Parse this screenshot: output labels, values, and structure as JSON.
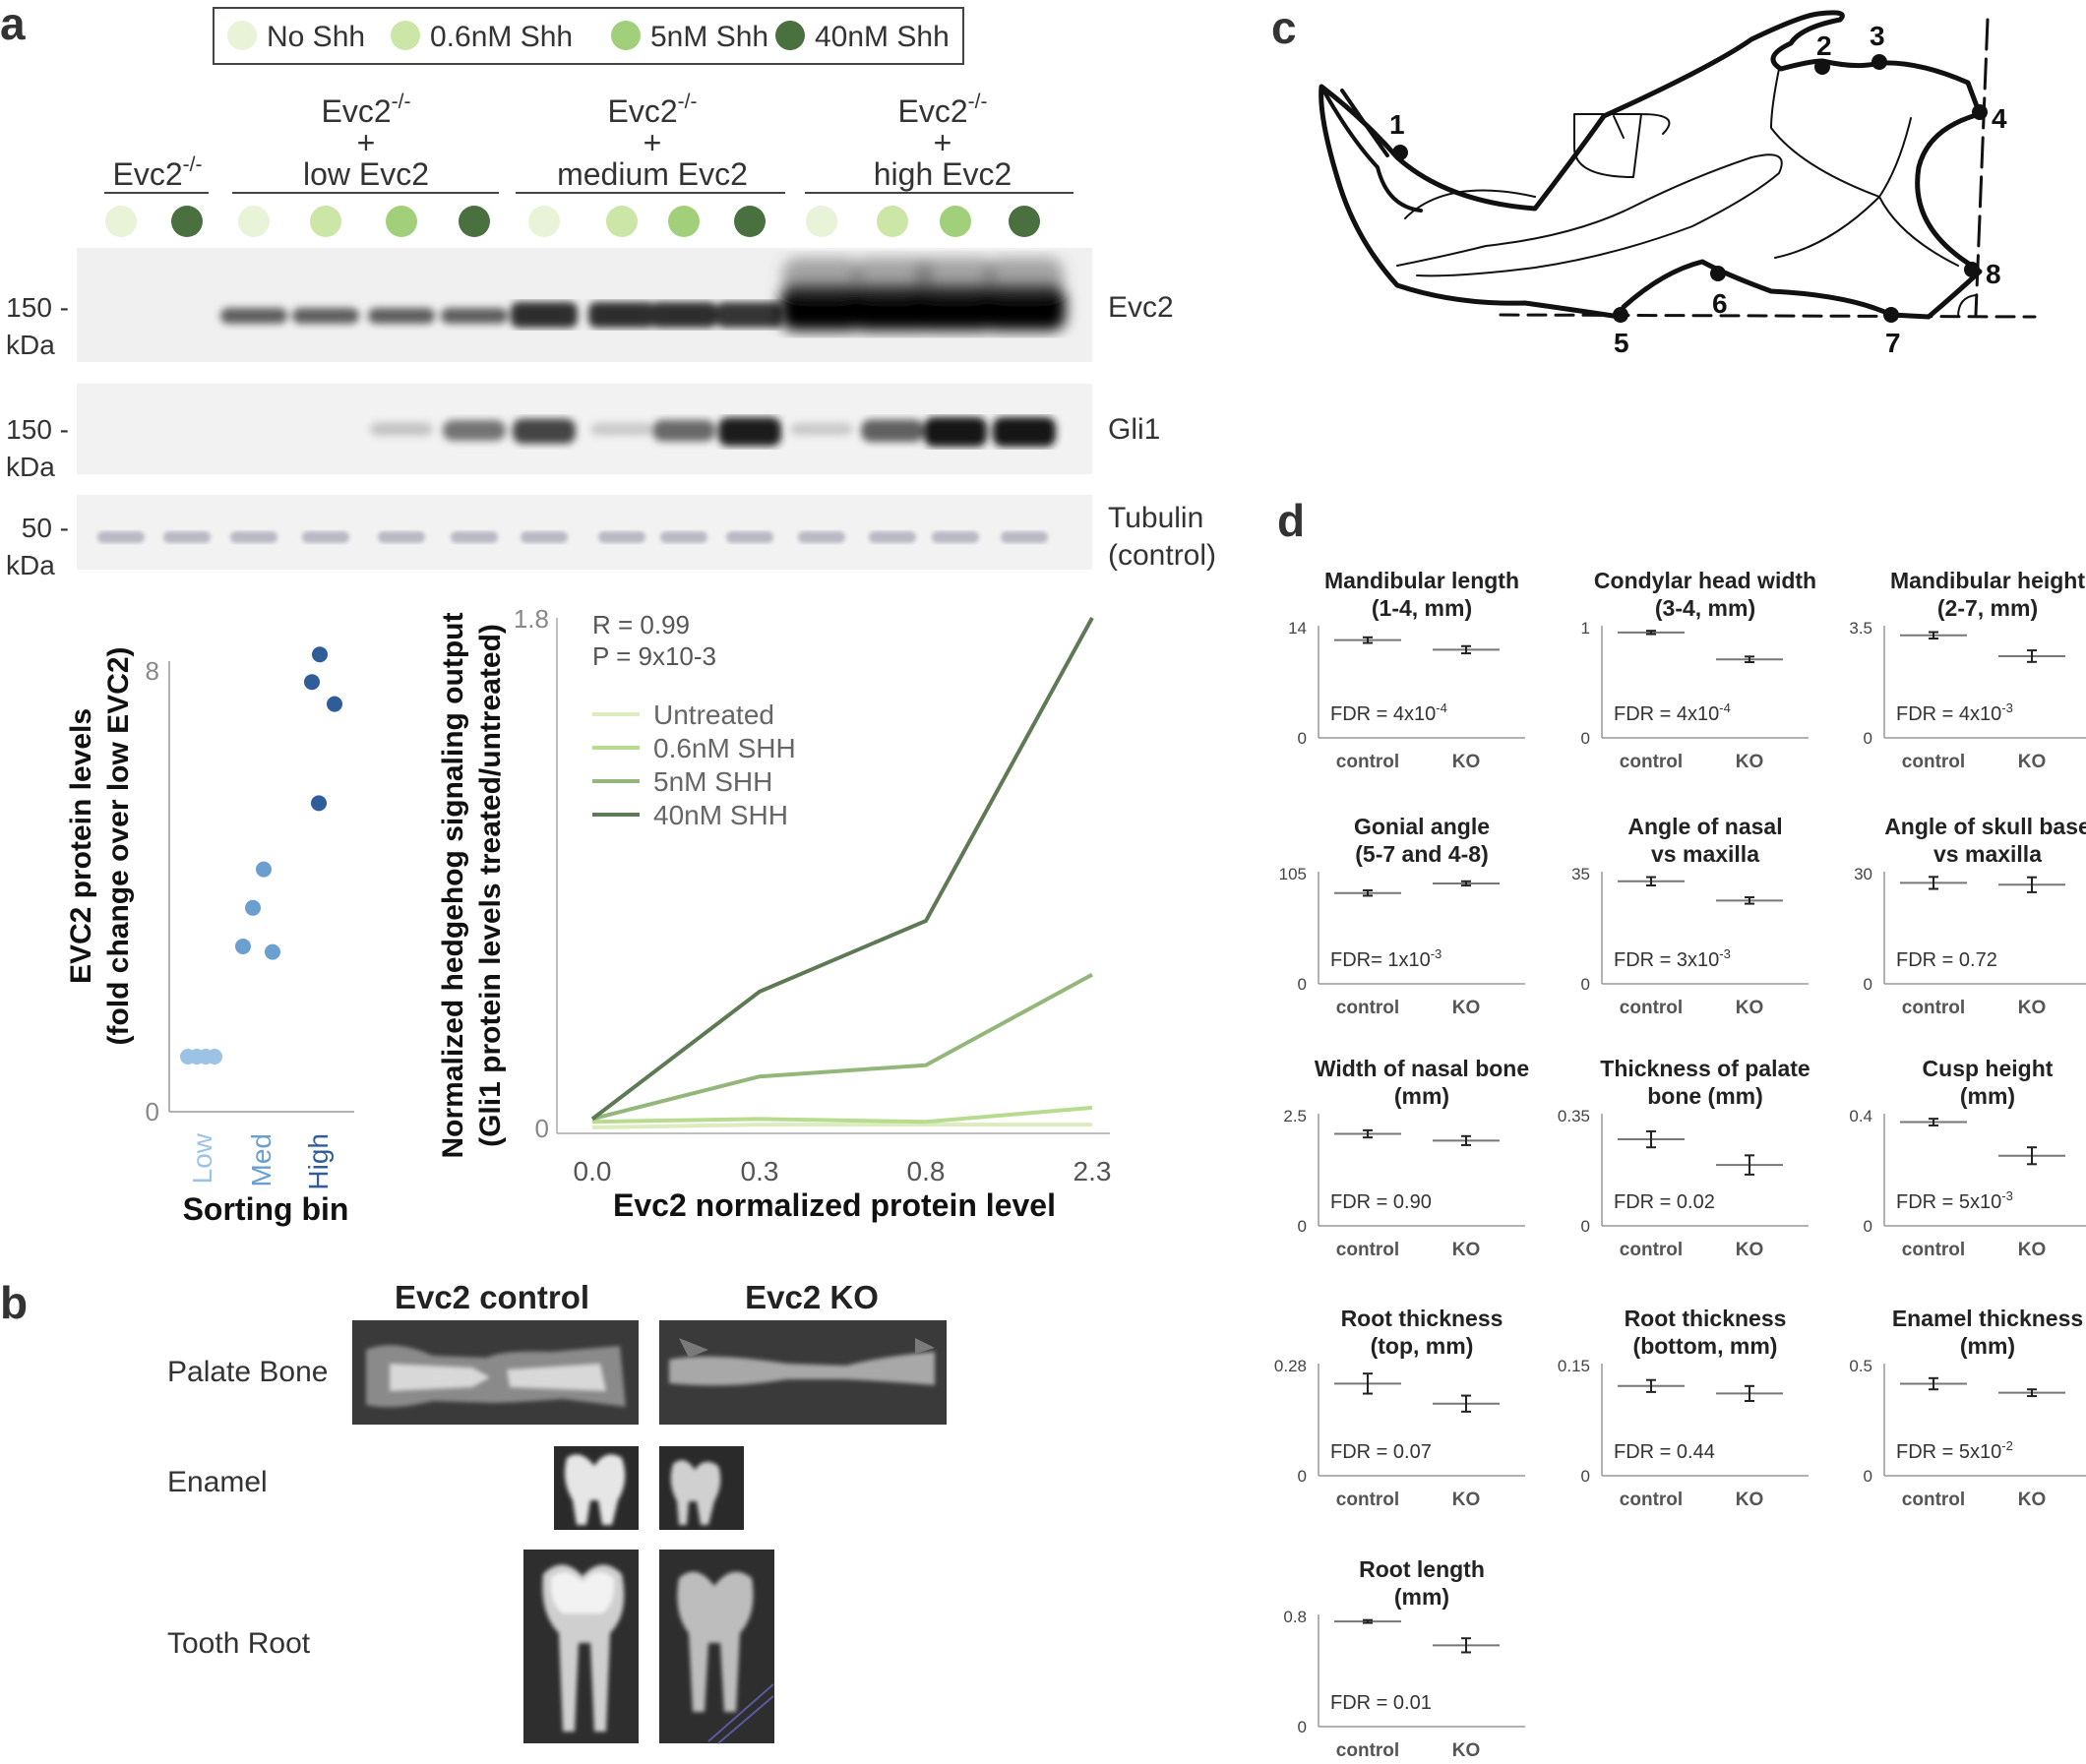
{
  "panels": {
    "a": "a",
    "b": "b",
    "c": "c",
    "d": "d"
  },
  "blot": {
    "legend": [
      {
        "label": "No Shh",
        "color": "#e8f3d8"
      },
      {
        "label": "0.6nM Shh",
        "color": "#cbe6a6"
      },
      {
        "label": "5nM Shh",
        "color": "#a2d07a"
      },
      {
        "label": "40nM Shh",
        "color": "#4a7040"
      }
    ],
    "groups": [
      {
        "lines": [
          "Evc2-/-"
        ]
      },
      {
        "lines": [
          "Evc2-/-",
          "+",
          "low Evc2"
        ]
      },
      {
        "lines": [
          "Evc2-/-",
          "+",
          "medium Evc2"
        ]
      },
      {
        "lines": [
          "Evc2-/-",
          "+",
          "high Evc2"
        ]
      }
    ],
    "superscript": "-/-",
    "bands": [
      {
        "name": "Evc2",
        "mw": "150 -",
        "unit": "kDa"
      },
      {
        "name": "Gli1",
        "mw": "150 -",
        "unit": "kDa"
      },
      {
        "name": "Tubulin",
        "name2": "(control)",
        "mw": "50 -",
        "unit": "kDa"
      }
    ]
  },
  "chart_data": [
    {
      "type": "scatter",
      "title": "",
      "xlabel": "Sorting bin",
      "ylabel": "EVC2 protein levels",
      "ylabel2": "(fold change over low EVC2)",
      "categories": [
        "Low",
        "Med",
        "High"
      ],
      "category_colors": [
        "#9cc2e6",
        "#6a9fd0",
        "#2f5d9a"
      ],
      "ylim": [
        0,
        8
      ],
      "yticks": [
        "0",
        "8"
      ],
      "points": [
        {
          "x": "Low",
          "y": 1.0
        },
        {
          "x": "Low",
          "y": 1.0
        },
        {
          "x": "Low",
          "y": 1.0
        },
        {
          "x": "Low",
          "y": 1.0
        },
        {
          "x": "Med",
          "y": 4.4
        },
        {
          "x": "Med",
          "y": 3.7
        },
        {
          "x": "Med",
          "y": 2.9
        },
        {
          "x": "Med",
          "y": 3.0
        },
        {
          "x": "High",
          "y": 8.3
        },
        {
          "x": "High",
          "y": 7.8
        },
        {
          "x": "High",
          "y": 7.4
        },
        {
          "x": "High",
          "y": 5.6
        }
      ]
    },
    {
      "type": "line",
      "xlabel": "Evc2 normalized protein level",
      "ylabel": "Normalized hedgehog signaling output",
      "ylabel2": "(Gli1 protein levels treated/untreated)",
      "x": [
        "0.0",
        "0.3",
        "0.8",
        "2.3"
      ],
      "ylim": [
        0,
        1.8
      ],
      "yticks": [
        "0",
        "1.8"
      ],
      "stats": [
        "R = 0.99",
        "P = 9x10-3"
      ],
      "series": [
        {
          "name": "Untreated",
          "color": "#dcebc0",
          "values": [
            0.0,
            0.01,
            0.01,
            0.01
          ]
        },
        {
          "name": "0.6nM SHH",
          "color": "#b8dc8f",
          "values": [
            0.02,
            0.03,
            0.02,
            0.07
          ]
        },
        {
          "name": "5nM SHH",
          "color": "#93b67a",
          "values": [
            0.03,
            0.18,
            0.22,
            0.54
          ]
        },
        {
          "name": "40nM SHH",
          "color": "#5e7a55",
          "values": [
            0.03,
            0.48,
            0.73,
            1.8
          ]
        }
      ]
    }
  ],
  "micro": {
    "col1": "Evc2 control",
    "col2": "Evc2 KO",
    "rows": [
      "Palate Bone",
      "Enamel",
      "Tooth Root"
    ]
  },
  "skull": {
    "landmarks": [
      "1",
      "2",
      "3",
      "4",
      "5",
      "6",
      "7",
      "8"
    ]
  },
  "minicharts": [
    {
      "title1": "Mandibular length",
      "title2": "(1-4, mm)",
      "ymax": "14",
      "fdr": "FDR = 4x10",
      "exp": "-4",
      "categories": [
        "control",
        "KO"
      ],
      "means": [
        12.2,
        11.0
      ],
      "errs": [
        0.35,
        0.45
      ],
      "max": 14
    },
    {
      "title1": "Condylar head width",
      "title2": "(3-4, mm)",
      "ymax": "1",
      "fdr": "FDR = 4x10",
      "exp": "-4",
      "categories": [
        "control",
        "KO"
      ],
      "means": [
        0.94,
        0.7
      ],
      "errs": [
        0.015,
        0.025
      ],
      "max": 1
    },
    {
      "title1": "Mandibular height",
      "title2": "(2-7, mm)",
      "ymax": "3.5",
      "fdr": "FDR = 4x10",
      "exp": "-3",
      "categories": [
        "control",
        "KO"
      ],
      "means": [
        3.2,
        2.55
      ],
      "errs": [
        0.1,
        0.18
      ],
      "max": 3.5
    },
    {
      "title1": "Gonial angle",
      "title2": "(5-7 and 4-8)",
      "ymax": "105",
      "fdr": "FDR= 1x10",
      "exp": "-3",
      "categories": [
        "control",
        "KO"
      ],
      "means": [
        85,
        94
      ],
      "errs": [
        2.5,
        2
      ],
      "max": 105
    },
    {
      "title1": "Angle of nasal",
      "title2": "vs maxilla",
      "ymax": "35",
      "fdr": "FDR = 3x10",
      "exp": "-3",
      "categories": [
        "control",
        "KO"
      ],
      "means": [
        32,
        26
      ],
      "errs": [
        1.3,
        1.0
      ],
      "max": 35
    },
    {
      "title1": "Angle of skull base",
      "title2": "vs maxilla",
      "ymax": "30",
      "fdr": "FDR = 0.72",
      "exp": "",
      "categories": [
        "control",
        "KO"
      ],
      "means": [
        27,
        26.5
      ],
      "errs": [
        1.6,
        2
      ],
      "max": 30
    },
    {
      "title1": "Width of nasal bone",
      "title2": "(mm)",
      "ymax": "2.5",
      "fdr": "FDR = 0.90",
      "exp": "",
      "categories": [
        "control",
        "KO"
      ],
      "means": [
        2.05,
        1.9
      ],
      "errs": [
        0.08,
        0.1
      ],
      "max": 2.5
    },
    {
      "title1": "Thickness of palate",
      "title2": "bone (mm)",
      "ymax": "0.35",
      "fdr": "FDR = 0.02",
      "exp": "",
      "categories": [
        "control",
        "KO"
      ],
      "means": [
        0.27,
        0.19
      ],
      "errs": [
        0.025,
        0.03
      ],
      "max": 0.35
    },
    {
      "title1": "Cusp height",
      "title2": "(mm)",
      "ymax": "0.4",
      "fdr": "FDR = 5x10",
      "exp": "-3",
      "categories": [
        "control",
        "KO"
      ],
      "means": [
        0.37,
        0.25
      ],
      "errs": [
        0.012,
        0.03
      ],
      "max": 0.4
    },
    {
      "title1": "Root thickness",
      "title2": "(top, mm)",
      "ymax": "0.28",
      "fdr": "FDR = 0.07",
      "exp": "",
      "categories": [
        "control",
        "KO"
      ],
      "means": [
        0.23,
        0.18
      ],
      "errs": [
        0.025,
        0.02
      ],
      "max": 0.28
    },
    {
      "title1": "Root thickness",
      "title2": "(bottom, mm)",
      "ymax": "0.15",
      "fdr": "FDR = 0.44",
      "exp": "",
      "categories": [
        "control",
        "KO"
      ],
      "means": [
        0.12,
        0.11
      ],
      "errs": [
        0.008,
        0.01
      ],
      "max": 0.15
    },
    {
      "title1": "Enamel thickness",
      "title2": "(mm)",
      "ymax": "0.5",
      "fdr": "FDR = 5x10",
      "exp": "-2",
      "categories": [
        "control",
        "KO"
      ],
      "means": [
        0.41,
        0.37
      ],
      "errs": [
        0.025,
        0.015
      ],
      "max": 0.5
    },
    {
      "title1": "Root length",
      "title2": "(mm)",
      "ymax": "0.8",
      "fdr": "FDR = 0.01",
      "exp": "",
      "categories": [
        "control",
        "KO"
      ],
      "means": [
        0.75,
        0.58
      ],
      "errs": [
        0.01,
        0.05
      ],
      "max": 0.8
    }
  ],
  "zero": "0"
}
